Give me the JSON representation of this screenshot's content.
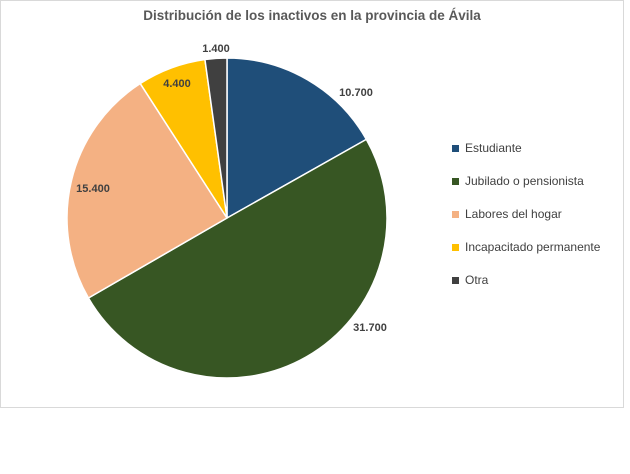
{
  "chart_data": {
    "type": "pie",
    "title": "Distribución de los inactivos en la provincia de Ávila",
    "categories": [
      "Estudiante",
      "Jubilado o pensionista",
      "Labores del hogar",
      "Incapacitado permanente",
      "Otra"
    ],
    "values": [
      10700,
      31700,
      15400,
      4400,
      1400
    ],
    "data_labels": [
      "10.700",
      "31.700",
      "15.400",
      "4.400",
      "1.400"
    ],
    "colors": [
      "#1f4e79",
      "#375623",
      "#f4b183",
      "#ffc000",
      "#404040"
    ],
    "legend_position": "right",
    "start_angle": "12 o'clock",
    "direction": "clockwise"
  }
}
